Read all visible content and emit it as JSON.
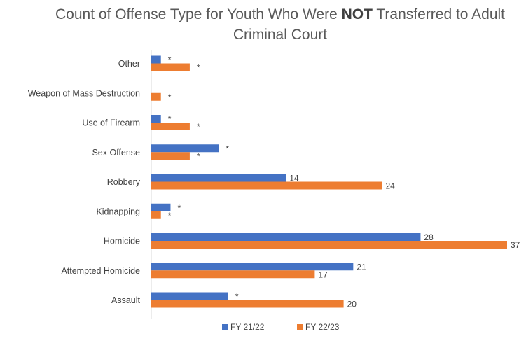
{
  "chart_data": {
    "type": "bar",
    "orientation": "horizontal",
    "title_parts": [
      {
        "text": "Count of Offense Type for Youth Who Were ",
        "bold": false
      },
      {
        "text": "NOT",
        "bold": true
      },
      {
        "text": " Transferred to Adult Criminal Court",
        "bold": false
      }
    ],
    "categories": [
      "Other",
      "Weapon of Mass Destruction",
      "Use of Firearm",
      "Sex Offense",
      "Robbery",
      "Kidnapping",
      "Homicide",
      "Attempted Homicide",
      "Assault"
    ],
    "series": [
      {
        "name": "FY 21/22",
        "color": "#4472C4",
        "values": [
          1,
          0,
          1,
          7,
          14,
          2,
          28,
          21,
          8
        ],
        "labels": [
          "*",
          "",
          "*",
          "*",
          "14",
          "*",
          "28",
          "21",
          "*"
        ]
      },
      {
        "name": "FY 22/23",
        "color": "#ED7D31",
        "values": [
          4,
          1,
          4,
          4,
          24,
          1,
          37,
          17,
          20
        ],
        "labels": [
          "*",
          "*",
          "*",
          "*",
          "24",
          "*",
          "37",
          "17",
          "20"
        ]
      }
    ],
    "xlim": [
      0,
      37
    ],
    "grid": false,
    "legend_position": "bottom"
  }
}
